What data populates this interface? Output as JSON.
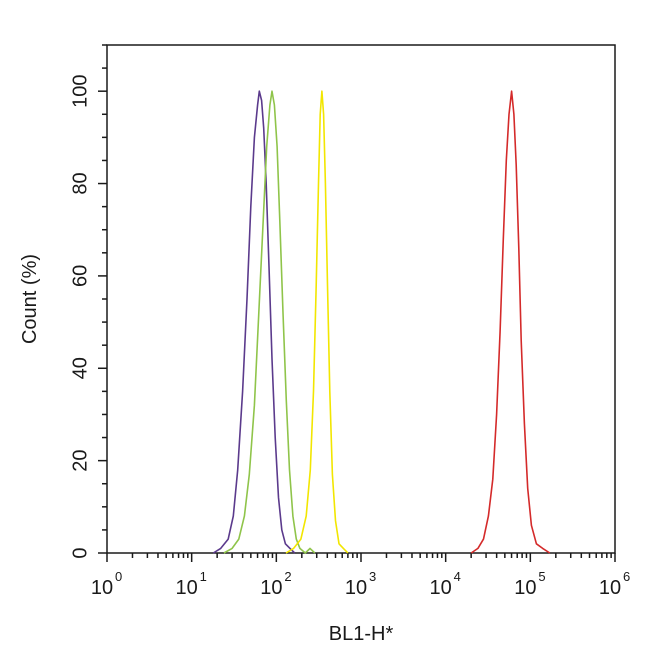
{
  "chart_data": {
    "type": "line",
    "title": "",
    "xlabel": "BL1-H*",
    "ylabel": "Count (%)",
    "x_scale": "log",
    "xlim": [
      1,
      1000000
    ],
    "ylim": [
      0,
      110
    ],
    "x_ticks": [
      {
        "value": 1,
        "base": "10",
        "exp": "0"
      },
      {
        "value": 10,
        "base": "10",
        "exp": "1"
      },
      {
        "value": 100,
        "base": "10",
        "exp": "2"
      },
      {
        "value": 1000,
        "base": "10",
        "exp": "3"
      },
      {
        "value": 10000,
        "base": "10",
        "exp": "4"
      },
      {
        "value": 100000,
        "base": "10",
        "exp": "5"
      },
      {
        "value": 1000000,
        "base": "10",
        "exp": "6"
      }
    ],
    "y_ticks": [
      "0",
      "20",
      "40",
      "60",
      "80",
      "100"
    ],
    "grid": false,
    "legend": "none",
    "series": [
      {
        "color": "#5b3a8c",
        "points": [
          [
            18,
            0
          ],
          [
            22,
            1
          ],
          [
            27,
            3
          ],
          [
            31,
            8
          ],
          [
            35,
            18
          ],
          [
            40,
            35
          ],
          [
            45,
            55
          ],
          [
            50,
            75
          ],
          [
            55,
            90
          ],
          [
            60,
            97
          ],
          [
            63,
            100
          ],
          [
            67,
            98
          ],
          [
            71,
            92
          ],
          [
            76,
            80
          ],
          [
            82,
            62
          ],
          [
            89,
            42
          ],
          [
            97,
            25
          ],
          [
            106,
            12
          ],
          [
            116,
            5
          ],
          [
            128,
            2
          ],
          [
            145,
            1
          ],
          [
            165,
            0
          ]
        ]
      },
      {
        "color": "#8fc44a",
        "points": [
          [
            24,
            0
          ],
          [
            30,
            1
          ],
          [
            36,
            3
          ],
          [
            42,
            8
          ],
          [
            48,
            17
          ],
          [
            55,
            32
          ],
          [
            62,
            52
          ],
          [
            70,
            72
          ],
          [
            77,
            88
          ],
          [
            84,
            97
          ],
          [
            89,
            100
          ],
          [
            95,
            97
          ],
          [
            102,
            88
          ],
          [
            110,
            72
          ],
          [
            120,
            52
          ],
          [
            131,
            33
          ],
          [
            143,
            18
          ],
          [
            157,
            8
          ],
          [
            172,
            3
          ],
          [
            190,
            1
          ],
          [
            220,
            0
          ],
          [
            250,
            1
          ],
          [
            285,
            0
          ]
        ]
      },
      {
        "color": "#f2e600",
        "points": [
          [
            130,
            0
          ],
          [
            160,
            1
          ],
          [
            195,
            3
          ],
          [
            225,
            8
          ],
          [
            252,
            18
          ],
          [
            275,
            35
          ],
          [
            296,
            58
          ],
          [
            315,
            80
          ],
          [
            330,
            95
          ],
          [
            345,
            100
          ],
          [
            362,
            95
          ],
          [
            380,
            80
          ],
          [
            402,
            58
          ],
          [
            428,
            35
          ],
          [
            460,
            17
          ],
          [
            500,
            7
          ],
          [
            550,
            2
          ],
          [
            620,
            1
          ],
          [
            700,
            0
          ]
        ]
      },
      {
        "color": "#d42a2a",
        "points": [
          [
            20000,
            0
          ],
          [
            24000,
            1
          ],
          [
            28000,
            3
          ],
          [
            32000,
            8
          ],
          [
            36000,
            16
          ],
          [
            40000,
            30
          ],
          [
            44000,
            48
          ],
          [
            48000,
            68
          ],
          [
            52000,
            85
          ],
          [
            56000,
            95
          ],
          [
            60000,
            100
          ],
          [
            64000,
            95
          ],
          [
            68000,
            84
          ],
          [
            73000,
            66
          ],
          [
            78000,
            46
          ],
          [
            85000,
            28
          ],
          [
            93000,
            14
          ],
          [
            103000,
            6
          ],
          [
            118000,
            2
          ],
          [
            140000,
            1
          ],
          [
            170000,
            0
          ]
        ]
      }
    ]
  }
}
